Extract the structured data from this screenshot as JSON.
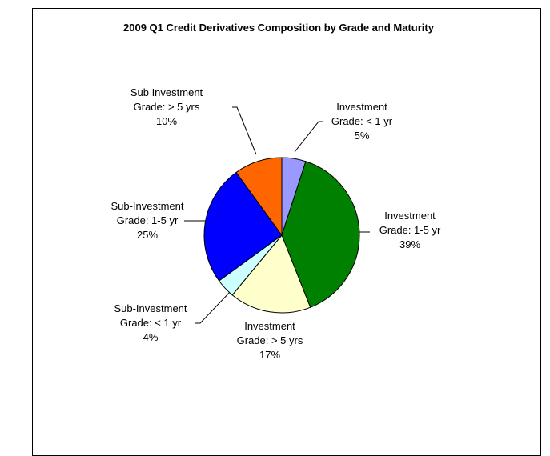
{
  "chart_data": {
    "type": "pie",
    "title": "2009 Q1 Credit Derivatives Composition by Grade and Maturity",
    "categories": [
      "Investment Grade: < 1 yr",
      "Investment Grade: 1-5 yr",
      "Investment Grade: > 5 yrs",
      "Sub-Investment Grade: < 1 yr",
      "Sub-Investment Grade: 1-5 yr",
      "Sub Investment Grade: > 5 yrs"
    ],
    "values": [
      5,
      39,
      17,
      4,
      25,
      10
    ],
    "value_labels": [
      "5%",
      "39%",
      "17%",
      "4%",
      "25%",
      "10%"
    ],
    "colors": [
      "#9999ff",
      "#008000",
      "#ffffcc",
      "#ccffff",
      "#0000ff",
      "#ff6600"
    ]
  }
}
